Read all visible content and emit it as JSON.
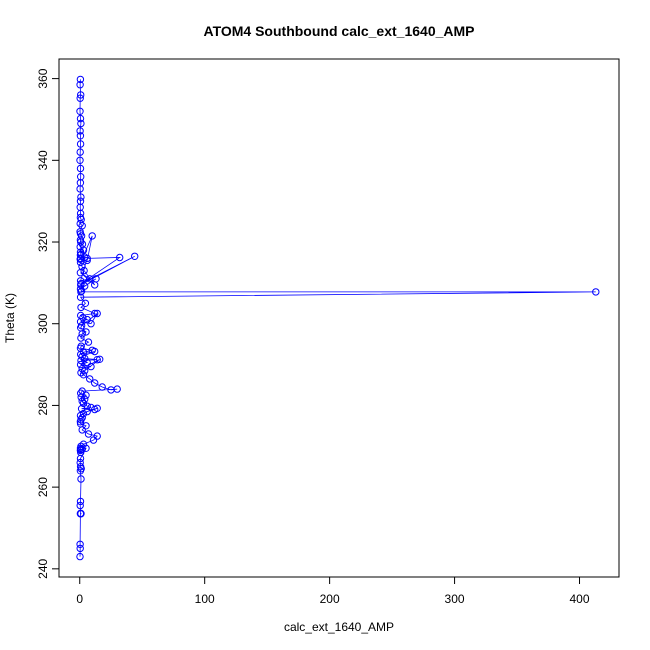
{
  "chart_data": {
    "type": "scatter",
    "title": "ATOM4 Southbound calc_ext_1640_AMP",
    "xlabel": "calc_ext_1640_AMP",
    "ylabel": "Theta (K)",
    "xlim": [
      -16.6,
      431.6
    ],
    "ylim": [
      238.0,
      364.8
    ],
    "xticks": [
      0,
      100,
      200,
      300,
      400
    ],
    "yticks": [
      240,
      260,
      280,
      300,
      320,
      340,
      360
    ],
    "grid": false,
    "line_color": "#0000ff",
    "marker": "open-circle",
    "series": [
      {
        "x": [
          0.5,
          0.3,
          0.8,
          0.4,
          0.2,
          0.6,
          0.9,
          0.3,
          0.5,
          0.7,
          0.4,
          0.2,
          0.6,
          0.8,
          0.5,
          0.3,
          0.9,
          0.6,
          0.4,
          0.7,
          0.5,
          1.2,
          0.4,
          2.0,
          0.3,
          0.6,
          1.5,
          0.5,
          0.8,
          2.2,
          0.4,
          3.0,
          0.6,
          1.0,
          0.5,
          4.0,
          0.7,
          0.4,
          6.0,
          10.0,
          0.6,
          1.8,
          3.5,
          12.0,
          0.5,
          8.0,
          0.7,
          6.0,
          32.0,
          1.0,
          44.0,
          0.8,
          4.0,
          13.0,
          0.6,
          1.5,
          0.9,
          413.0,
          0.7,
          4.5,
          1.0,
          12.0,
          0.8,
          2.5,
          6.0,
          0.7,
          9.0,
          14.0,
          1.5,
          0.8,
          5.0,
          2.0,
          0.9,
          7.0,
          1.2,
          0.6,
          10.0,
          3.0,
          0.8,
          12.0,
          2.0,
          4.0,
          14.0,
          1.0,
          6.0,
          0.7,
          9.0,
          2.0,
          16.0,
          4.0,
          1.0,
          3.0,
          8.0,
          12.0,
          18.0,
          25.0,
          30.0,
          2.0,
          0.8,
          5.0,
          1.2,
          4.0,
          2.0,
          3.0,
          6.0,
          9.0,
          1.5,
          12.0,
          14.0,
          6.0,
          3.0,
          0.6,
          2.0,
          1.0,
          0.5,
          0.7,
          5.0,
          2.0,
          7.0,
          14.0,
          11.0,
          3.0,
          1.0,
          0.6,
          0.9,
          0.5,
          0.8,
          2.0,
          5.0,
          0.6,
          0.4,
          0.7,
          1.2,
          0.5,
          1.0,
          0.6,
          0.4,
          0.8,
          1.0,
          0.5,
          0.3,
          0.4,
          0.2
        ],
        "y": [
          359.8,
          358.5,
          356.0,
          355.2,
          352.0,
          350.2,
          349.0,
          347.2,
          346.0,
          344.0,
          342.0,
          340.0,
          338.0,
          336.0,
          334.5,
          333.0,
          331.0,
          330.0,
          328.5,
          327.0,
          326.0,
          325.5,
          324.5,
          324.0,
          322.5,
          322.0,
          321.5,
          320.5,
          320.0,
          319.5,
          318.8,
          318.0,
          317.5,
          317.0,
          316.8,
          316.3,
          316.0,
          315.8,
          315.5,
          321.5,
          315.0,
          314.0,
          313.0,
          309.5,
          312.5,
          311.0,
          310.5,
          316.0,
          316.2,
          309.8,
          316.5,
          309.5,
          309.2,
          311.0,
          308.5,
          308.0,
          307.8,
          307.8,
          306.5,
          305.0,
          304.0,
          302.5,
          302.0,
          301.5,
          301.0,
          300.5,
          300.0,
          302.5,
          299.5,
          299.0,
          298.0,
          297.5,
          296.5,
          295.5,
          294.5,
          294.0,
          293.5,
          293.0,
          292.5,
          293.2,
          292.0,
          291.5,
          291.2,
          291.0,
          290.5,
          290.0,
          289.5,
          289.0,
          291.3,
          288.5,
          288.0,
          287.5,
          286.5,
          285.5,
          284.5,
          283.8,
          284.0,
          283.5,
          283.0,
          282.5,
          282.0,
          281.5,
          281.0,
          280.5,
          279.8,
          279.5,
          279.2,
          279.0,
          279.3,
          278.5,
          278.0,
          277.5,
          277.0,
          276.5,
          276.0,
          275.5,
          275.0,
          274.0,
          273.0,
          272.5,
          271.5,
          270.5,
          270.0,
          269.5,
          269.2,
          269.0,
          268.5,
          269.3,
          269.5,
          267.0,
          266.0,
          265.0,
          264.5,
          264.0,
          262.0,
          256.5,
          255.5,
          253.6,
          253.5,
          253.5,
          246.0,
          245.0,
          243.0
        ]
      }
    ]
  }
}
